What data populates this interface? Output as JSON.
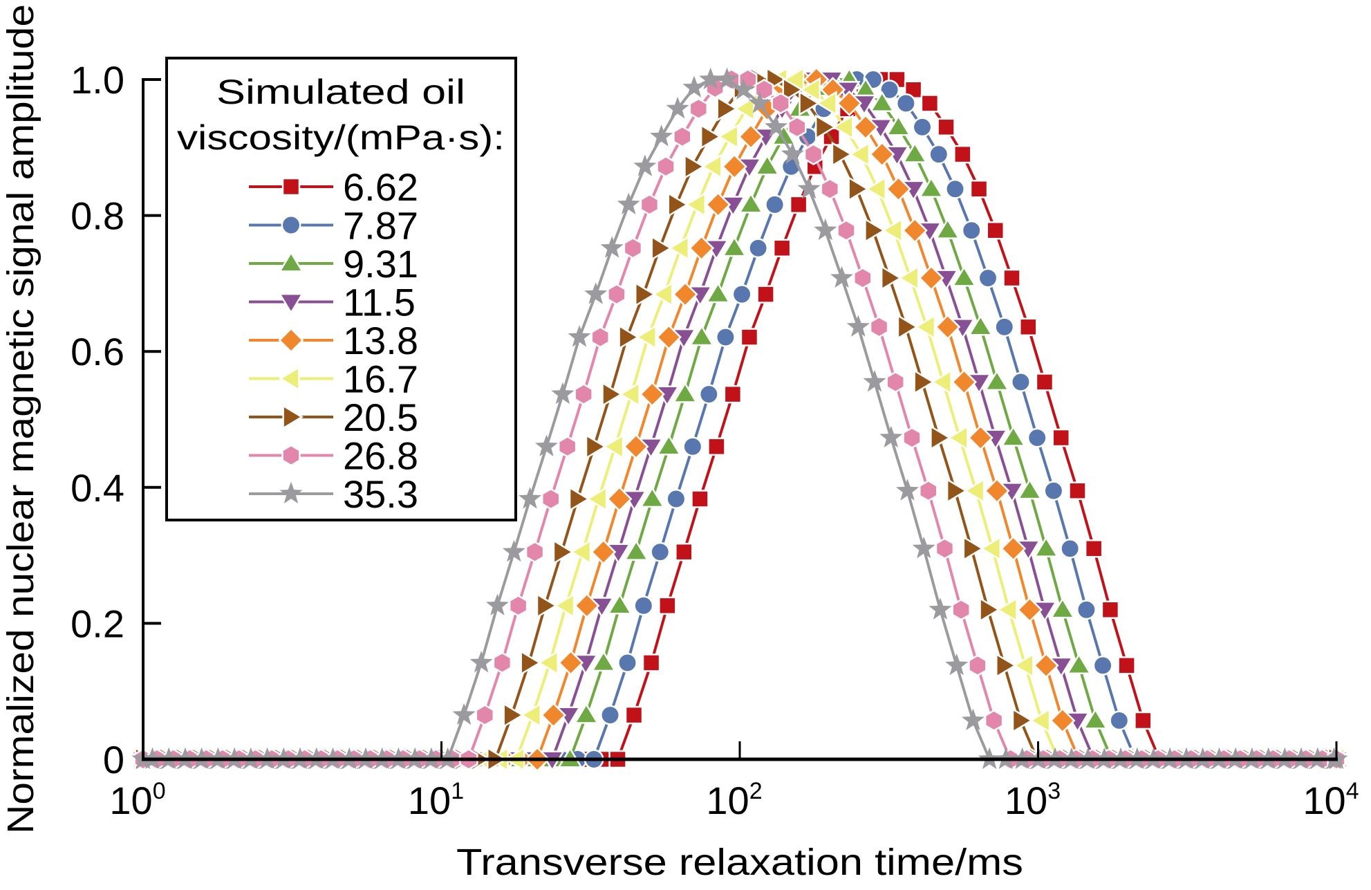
{
  "chart_data": {
    "type": "line",
    "title": "",
    "xlabel": "Transverse relaxation time/ms",
    "ylabel": "Normalized nuclear magnetic signal amplitude",
    "x_scale": "log",
    "xlim": [
      1,
      10000
    ],
    "ylim": [
      0,
      1.0
    ],
    "x_ticks": [
      {
        "value": 1,
        "base": "10",
        "exp": "0"
      },
      {
        "value": 10,
        "base": "10",
        "exp": "1"
      },
      {
        "value": 100,
        "base": "10",
        "exp": "2"
      },
      {
        "value": 1000,
        "base": "10",
        "exp": "3"
      },
      {
        "value": 10000,
        "base": "10",
        "exp": "4"
      }
    ],
    "y_ticks": [
      {
        "value": 0,
        "label": "0"
      },
      {
        "value": 0.2,
        "label": "0.2"
      },
      {
        "value": 0.4,
        "label": "0.4"
      },
      {
        "value": 0.6,
        "label": "0.6"
      },
      {
        "value": 0.8,
        "label": "0.8"
      },
      {
        "value": 1.0,
        "label": "1.0"
      }
    ],
    "grid": false,
    "legend": {
      "title_line1": "Simulated oil",
      "title_line2": "viscosity/(mPa·s):",
      "placement": "top-left"
    },
    "baseline_value": 0,
    "baseline_step_decades": 0.055,
    "profile_reference_series": "35.3",
    "profile": {
      "x_ms": [
        10.5,
        11.9,
        13.6,
        15.4,
        17.5,
        19.8,
        22.5,
        25.5,
        29.0,
        32.9,
        37.3,
        42.4,
        48.1,
        54.6,
        61.9,
        70.3,
        79.8,
        90.6,
        102.8,
        116.7,
        132.4,
        150.3,
        170.6,
        193.6,
        219.8,
        249.5,
        283.1,
        321.4,
        364.8,
        414.0,
        469.9,
        533.3,
        605.3,
        687.1
      ],
      "y": [
        0,
        0.065,
        0.142,
        0.226,
        0.305,
        0.383,
        0.46,
        0.537,
        0.621,
        0.684,
        0.752,
        0.816,
        0.872,
        0.916,
        0.957,
        0.988,
        1.0,
        1.0,
        0.985,
        0.965,
        0.93,
        0.89,
        0.839,
        0.778,
        0.708,
        0.636,
        0.555,
        0.473,
        0.395,
        0.31,
        0.22,
        0.138,
        0.057,
        0
      ]
    },
    "series": [
      {
        "name": "6.62",
        "color": "#C1121A",
        "marker": "square",
        "time_shift_factor": 3.715
      },
      {
        "name": "7.87",
        "color": "#5777AE",
        "marker": "circle",
        "time_shift_factor": 3.09
      },
      {
        "name": "9.31",
        "color": "#6EA944",
        "marker": "triangle-up",
        "time_shift_factor": 2.57
      },
      {
        "name": "11.5",
        "color": "#884F94",
        "marker": "triangle-down",
        "time_shift_factor": 2.239
      },
      {
        "name": "13.8",
        "color": "#F0872D",
        "marker": "diamond",
        "time_shift_factor": 1.995
      },
      {
        "name": "16.7",
        "color": "#EDEE77",
        "marker": "triangle-left",
        "time_shift_factor": 1.698
      },
      {
        "name": "20.5",
        "color": "#935419",
        "marker": "triangle-right",
        "time_shift_factor": 1.445
      },
      {
        "name": "26.8",
        "color": "#E286AC",
        "marker": "hexagon",
        "time_shift_factor": 1.175
      },
      {
        "name": "35.3",
        "color": "#9B9A9E",
        "marker": "star",
        "time_shift_factor": 1.0
      }
    ]
  }
}
